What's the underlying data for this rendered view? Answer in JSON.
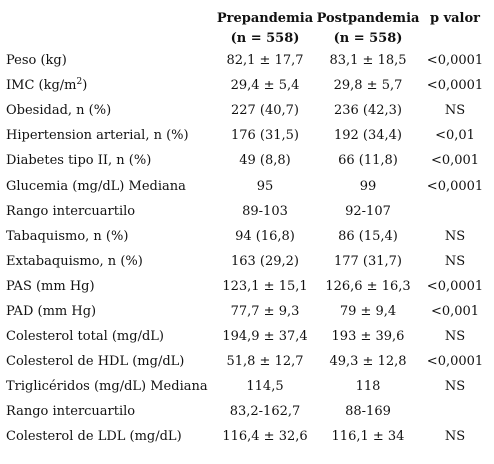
{
  "header": {
    "col_label": "",
    "col_pre": "Prepandemia",
    "col_post": "Postpandemia",
    "col_p": "p valor",
    "n_pre": "(n = 558)",
    "n_post": "(n = 558)"
  },
  "rows": [
    {
      "label": "Peso (kg)",
      "pre": "82,1 ± 17,7",
      "post": "83,1 ± 18,5",
      "p": "<0,0001"
    },
    {
      "label": "IMC (kg/m",
      "label_sup": "2",
      "label_after": ")",
      "pre": "29,4 ± 5,4",
      "post": "29,8 ± 5,7",
      "p": "<0,0001"
    },
    {
      "label": "Obesidad, n (%)",
      "pre": "227 (40,7)",
      "post": "236 (42,3)",
      "p": "NS"
    },
    {
      "label": "Hipertension arterial, n (%)",
      "pre": "176 (31,5)",
      "post": "192 (34,4)",
      "p": "<0,01"
    },
    {
      "label": "Diabetes tipo II, n (%)",
      "pre": "49 (8,8)",
      "post": "66 (11,8)",
      "p": "<0,001"
    },
    {
      "label": "Glucemia (mg/dL) Mediana",
      "pre": "95",
      "post": "99",
      "p": "<0,0001"
    },
    {
      "label": "Rango intercuartilo",
      "pre": "89-103",
      "post": "92-107",
      "p": ""
    },
    {
      "label": "Tabaquismo, n (%)",
      "pre": "94 (16,8)",
      "post": "86 (15,4)",
      "p": "NS"
    },
    {
      "label": "Extabaquismo, n (%)",
      "pre": "163 (29,2)",
      "post": "177 (31,7)",
      "p": "NS"
    },
    {
      "label": "PAS (mm Hg)",
      "pre": "123,1 ± 15,1",
      "post": "126,6 ± 16,3",
      "p": "<0,0001"
    },
    {
      "label": "PAD (mm Hg)",
      "pre": "77,7 ± 9,3",
      "post": "79 ± 9,4",
      "p": "<0,001"
    },
    {
      "label": "Colesterol total (mg/dL)",
      "pre": "194,9 ± 37,4",
      "post": "193 ± 39,6",
      "p": "NS"
    },
    {
      "label": "Colesterol de HDL (mg/dL)",
      "pre": "51,8 ± 12,7",
      "post": "49,3 ± 12,8",
      "p": "<0,0001"
    },
    {
      "label": "Triglicéridos (mg/dL) Mediana",
      "pre": "114,5",
      "post": "118",
      "p": "NS"
    },
    {
      "label": "Rango intercuartilo",
      "pre": "83,2-162,7",
      "post": "88-169",
      "p": ""
    },
    {
      "label": "Colesterol de LDL (mg/dL)",
      "pre": "116,4 ± 32,6",
      "post": "116,1 ± 34",
      "p": "NS"
    }
  ]
}
